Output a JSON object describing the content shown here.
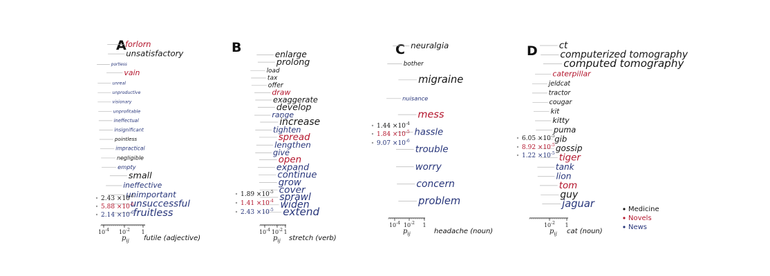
{
  "colors": {
    "Medicine": "#151515",
    "Novels": "#b3152c",
    "News": "#27357a"
  },
  "legend": [
    {
      "label": "Medicine",
      "color": "#151515"
    },
    {
      "label": "Novels",
      "color": "#b3152c"
    },
    {
      "label": "News",
      "color": "#27357a"
    }
  ],
  "chart_data": [
    {
      "type": "scatter",
      "panel": "A",
      "title": "futile (adjective)",
      "xlabel": "p_ij",
      "xscale": "log",
      "xticks": [
        "10^-4",
        "10^-2",
        "1"
      ],
      "priors": [
        {
          "value": "2.43 ×10^-6",
          "domain": "Medicine"
        },
        {
          "value": "5.88 ×10^-6",
          "domain": "Novels"
        },
        {
          "value": "2.14 ×10^-6",
          "domain": "News"
        }
      ],
      "words": [
        {
          "text": "forlorn",
          "domain": "Novels",
          "p": 0.003
        },
        {
          "text": "unsatisfactory",
          "domain": "Medicine",
          "p": 0.004
        },
        {
          "text": "portless",
          "domain": "News",
          "p": 2e-05
        },
        {
          "text": "vain",
          "domain": "Novels",
          "p": 0.002
        },
        {
          "text": "unreal",
          "domain": "News",
          "p": 3e-05
        },
        {
          "text": "unproductive",
          "domain": "News",
          "p": 3e-05
        },
        {
          "text": "visionary",
          "domain": "News",
          "p": 3e-05
        },
        {
          "text": "unprofitable",
          "domain": "News",
          "p": 4e-05
        },
        {
          "text": "ineffectual",
          "domain": "News",
          "p": 5e-05
        },
        {
          "text": "insignificant",
          "domain": "News",
          "p": 6e-05
        },
        {
          "text": "pointless",
          "domain": "Medicine",
          "p": 7e-05
        },
        {
          "text": "impractical",
          "domain": "News",
          "p": 0.0001
        },
        {
          "text": "negligible",
          "domain": "Medicine",
          "p": 0.00015
        },
        {
          "text": "empty",
          "domain": "News",
          "p": 0.0002
        },
        {
          "text": "small",
          "domain": "Medicine",
          "p": 0.01
        },
        {
          "text": "ineffective",
          "domain": "News",
          "p": 0.0015
        },
        {
          "text": "unimportant",
          "domain": "News",
          "p": 0.004
        },
        {
          "text": "unsuccessful",
          "domain": "News",
          "p": 0.02
        },
        {
          "text": "fruitless",
          "domain": "News",
          "p": 0.05
        }
      ]
    },
    {
      "type": "scatter",
      "panel": "B",
      "title": "stretch (verb)",
      "xlabel": "p_ij",
      "xscale": "log",
      "xticks": [
        "10^-4",
        "10^-2",
        "1"
      ],
      "priors": [
        {
          "value": "1.89 ×10^-5",
          "domain": "Medicine"
        },
        {
          "value": "1.41 ×10^-4",
          "domain": "Novels"
        },
        {
          "value": "2.43 ×10^-5",
          "domain": "News"
        }
      ],
      "words": [
        {
          "text": "enlarge",
          "domain": "Medicine",
          "p": 0.006
        },
        {
          "text": "prolong",
          "domain": "Medicine",
          "p": 0.01
        },
        {
          "text": "load",
          "domain": "Medicine",
          "p": 0.0003
        },
        {
          "text": "tax",
          "domain": "Medicine",
          "p": 0.0004
        },
        {
          "text": "offer",
          "domain": "Medicine",
          "p": 0.0005
        },
        {
          "text": "draw",
          "domain": "Novels",
          "p": 0.002
        },
        {
          "text": "exaggerate",
          "domain": "Medicine",
          "p": 0.003
        },
        {
          "text": "develop",
          "domain": "Medicine",
          "p": 0.01
        },
        {
          "text": "range",
          "domain": "News",
          "p": 0.002
        },
        {
          "text": "increase",
          "domain": "Medicine",
          "p": 0.03
        },
        {
          "text": "tighten",
          "domain": "News",
          "p": 0.003
        },
        {
          "text": "spread",
          "domain": "Novels",
          "p": 0.02
        },
        {
          "text": "lengthen",
          "domain": "News",
          "p": 0.005
        },
        {
          "text": "give",
          "domain": "News",
          "p": 0.003
        },
        {
          "text": "open",
          "domain": "Novels",
          "p": 0.02
        },
        {
          "text": "expand",
          "domain": "News",
          "p": 0.01
        },
        {
          "text": "continue",
          "domain": "News",
          "p": 0.015
        },
        {
          "text": "grow",
          "domain": "News",
          "p": 0.02
        },
        {
          "text": "cover",
          "domain": "News",
          "p": 0.025
        },
        {
          "text": "sprawl",
          "domain": "News",
          "p": 0.03
        },
        {
          "text": "widen",
          "domain": "News",
          "p": 0.04
        },
        {
          "text": "extend",
          "domain": "News",
          "p": 0.1
        }
      ]
    },
    {
      "type": "scatter",
      "panel": "C",
      "title": "headache (noun)",
      "xlabel": "p_ij",
      "xscale": "log",
      "xticks": [
        "10^-4",
        "10^-2",
        "1"
      ],
      "priors": [
        {
          "value": "1.44 ×10^-4",
          "domain": "Medicine"
        },
        {
          "value": "1.84 ×10^-5",
          "domain": "Novels"
        },
        {
          "value": "9.07 ×10^-6",
          "domain": "News"
        }
      ],
      "words": [
        {
          "text": "neuralgia",
          "domain": "Medicine",
          "p": 0.004
        },
        {
          "text": "bother",
          "domain": "Medicine",
          "p": 0.0003
        },
        {
          "text": "migraine",
          "domain": "Medicine",
          "p": 0.06
        },
        {
          "text": "nuisance",
          "domain": "News",
          "p": 0.0002
        },
        {
          "text": "mess",
          "domain": "Novels",
          "p": 0.05
        },
        {
          "text": "hassle",
          "domain": "News",
          "p": 0.015
        },
        {
          "text": "trouble",
          "domain": "News",
          "p": 0.02
        },
        {
          "text": "worry",
          "domain": "News",
          "p": 0.02
        },
        {
          "text": "concern",
          "domain": "News",
          "p": 0.03
        },
        {
          "text": "problem",
          "domain": "News",
          "p": 0.06
        }
      ]
    },
    {
      "type": "scatter",
      "panel": "D",
      "title": "cat (noun)",
      "xlabel": "p_ij",
      "xscale": "log",
      "xticks": [
        "10^-2",
        "1"
      ],
      "priors": [
        {
          "value": "6.05 ×10^-5",
          "domain": "Medicine"
        },
        {
          "value": "8.92 ×10^-5",
          "domain": "Novels"
        },
        {
          "value": "1.22 ×10^-5",
          "domain": "News"
        }
      ],
      "words": [
        {
          "text": "ct",
          "domain": "Medicine",
          "p": 0.02
        },
        {
          "text": "computerized tomography",
          "domain": "Medicine",
          "p": 0.03
        },
        {
          "text": "computed tomography",
          "domain": "Medicine",
          "p": 0.1
        },
        {
          "text": "caterpillar",
          "domain": "Novels",
          "p": 0.002
        },
        {
          "text": "jeldcat",
          "domain": "Medicine",
          "p": 0.0005
        },
        {
          "text": "tractor",
          "domain": "Medicine",
          "p": 0.0005
        },
        {
          "text": "cougar",
          "domain": "Medicine",
          "p": 0.0006
        },
        {
          "text": "kit",
          "domain": "Medicine",
          "p": 0.001
        },
        {
          "text": "kitty",
          "domain": "Medicine",
          "p": 0.002
        },
        {
          "text": "puma",
          "domain": "Medicine",
          "p": 0.003
        },
        {
          "text": "gib",
          "domain": "Medicine",
          "p": 0.004
        },
        {
          "text": "gossip",
          "domain": "Medicine",
          "p": 0.006
        },
        {
          "text": "tiger",
          "domain": "Novels",
          "p": 0.02
        },
        {
          "text": "tank",
          "domain": "News",
          "p": 0.006
        },
        {
          "text": "lion",
          "domain": "News",
          "p": 0.007
        },
        {
          "text": "tom",
          "domain": "Novels",
          "p": 0.02
        },
        {
          "text": "guy",
          "domain": "Medicine",
          "p": 0.03
        },
        {
          "text": "jaguar",
          "domain": "News",
          "p": 0.06
        }
      ]
    }
  ]
}
